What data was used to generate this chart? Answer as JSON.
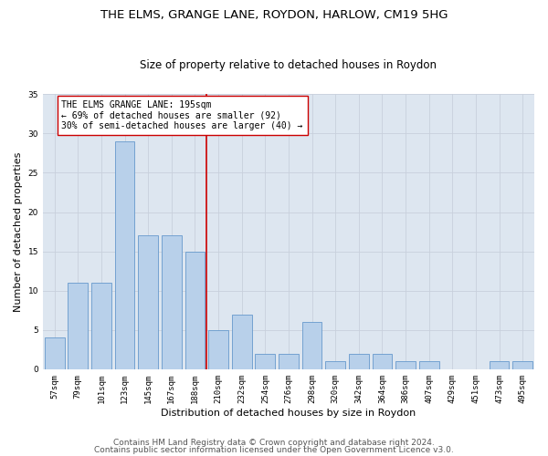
{
  "title": "THE ELMS, GRANGE LANE, ROYDON, HARLOW, CM19 5HG",
  "subtitle": "Size of property relative to detached houses in Roydon",
  "xlabel": "Distribution of detached houses by size in Roydon",
  "ylabel": "Number of detached properties",
  "categories": [
    "57sqm",
    "79sqm",
    "101sqm",
    "123sqm",
    "145sqm",
    "167sqm",
    "188sqm",
    "210sqm",
    "232sqm",
    "254sqm",
    "276sqm",
    "298sqm",
    "320sqm",
    "342sqm",
    "364sqm",
    "386sqm",
    "407sqm",
    "429sqm",
    "451sqm",
    "473sqm",
    "495sqm"
  ],
  "values": [
    4,
    11,
    11,
    29,
    17,
    17,
    15,
    5,
    7,
    2,
    2,
    6,
    1,
    2,
    2,
    1,
    1,
    0,
    0,
    1,
    1
  ],
  "bar_color": "#b8d0ea",
  "bar_edgecolor": "#6699cc",
  "bar_linewidth": 0.6,
  "reference_line_x": 6.5,
  "reference_line_color": "#cc0000",
  "annotation_line1": "THE ELMS GRANGE LANE: 195sqm",
  "annotation_line2": "← 69% of detached houses are smaller (92)",
  "annotation_line3": "30% of semi-detached houses are larger (40) →",
  "annotation_box_color": "#ffffff",
  "annotation_box_edgecolor": "#cc0000",
  "ylim": [
    0,
    35
  ],
  "yticks": [
    0,
    5,
    10,
    15,
    20,
    25,
    30,
    35
  ],
  "grid_color": "#c8d0dc",
  "bg_color": "#dde6f0",
  "footer1": "Contains HM Land Registry data © Crown copyright and database right 2024.",
  "footer2": "Contains public sector information licensed under the Open Government Licence v3.0.",
  "title_fontsize": 9.5,
  "subtitle_fontsize": 8.5,
  "xlabel_fontsize": 8,
  "ylabel_fontsize": 8,
  "tick_fontsize": 6.5,
  "annotation_fontsize": 7,
  "footer_fontsize": 6.5
}
